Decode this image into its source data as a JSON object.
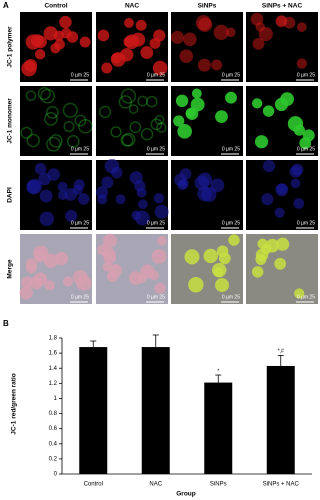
{
  "panel_a": {
    "label": "A",
    "columns": [
      "Control",
      "NAC",
      "SiNPs",
      "SiNPs + NAC"
    ],
    "rows": [
      "JC-1 polymer",
      "JC-1 monomer",
      "DAPI",
      "Merge"
    ],
    "scale_label": "0 µm 25"
  },
  "chart_data": {
    "type": "bar",
    "label": "B",
    "categories": [
      "Control",
      "NAC",
      "SiNPs",
      "SiNPs + NAC"
    ],
    "values": [
      1.68,
      1.68,
      1.21,
      1.43
    ],
    "errors": [
      0.08,
      0.16,
      0.1,
      0.14
    ],
    "significance": [
      null,
      null,
      "*",
      "*,#"
    ],
    "color": "#000000",
    "ylim": [
      0,
      1.8
    ],
    "yticks": [
      0,
      0.2,
      0.4,
      0.6,
      0.8,
      1,
      1.2,
      1.4,
      1.6,
      1.8
    ],
    "y_label": "JC-1 red/green ratio",
    "x_label": "Group"
  }
}
